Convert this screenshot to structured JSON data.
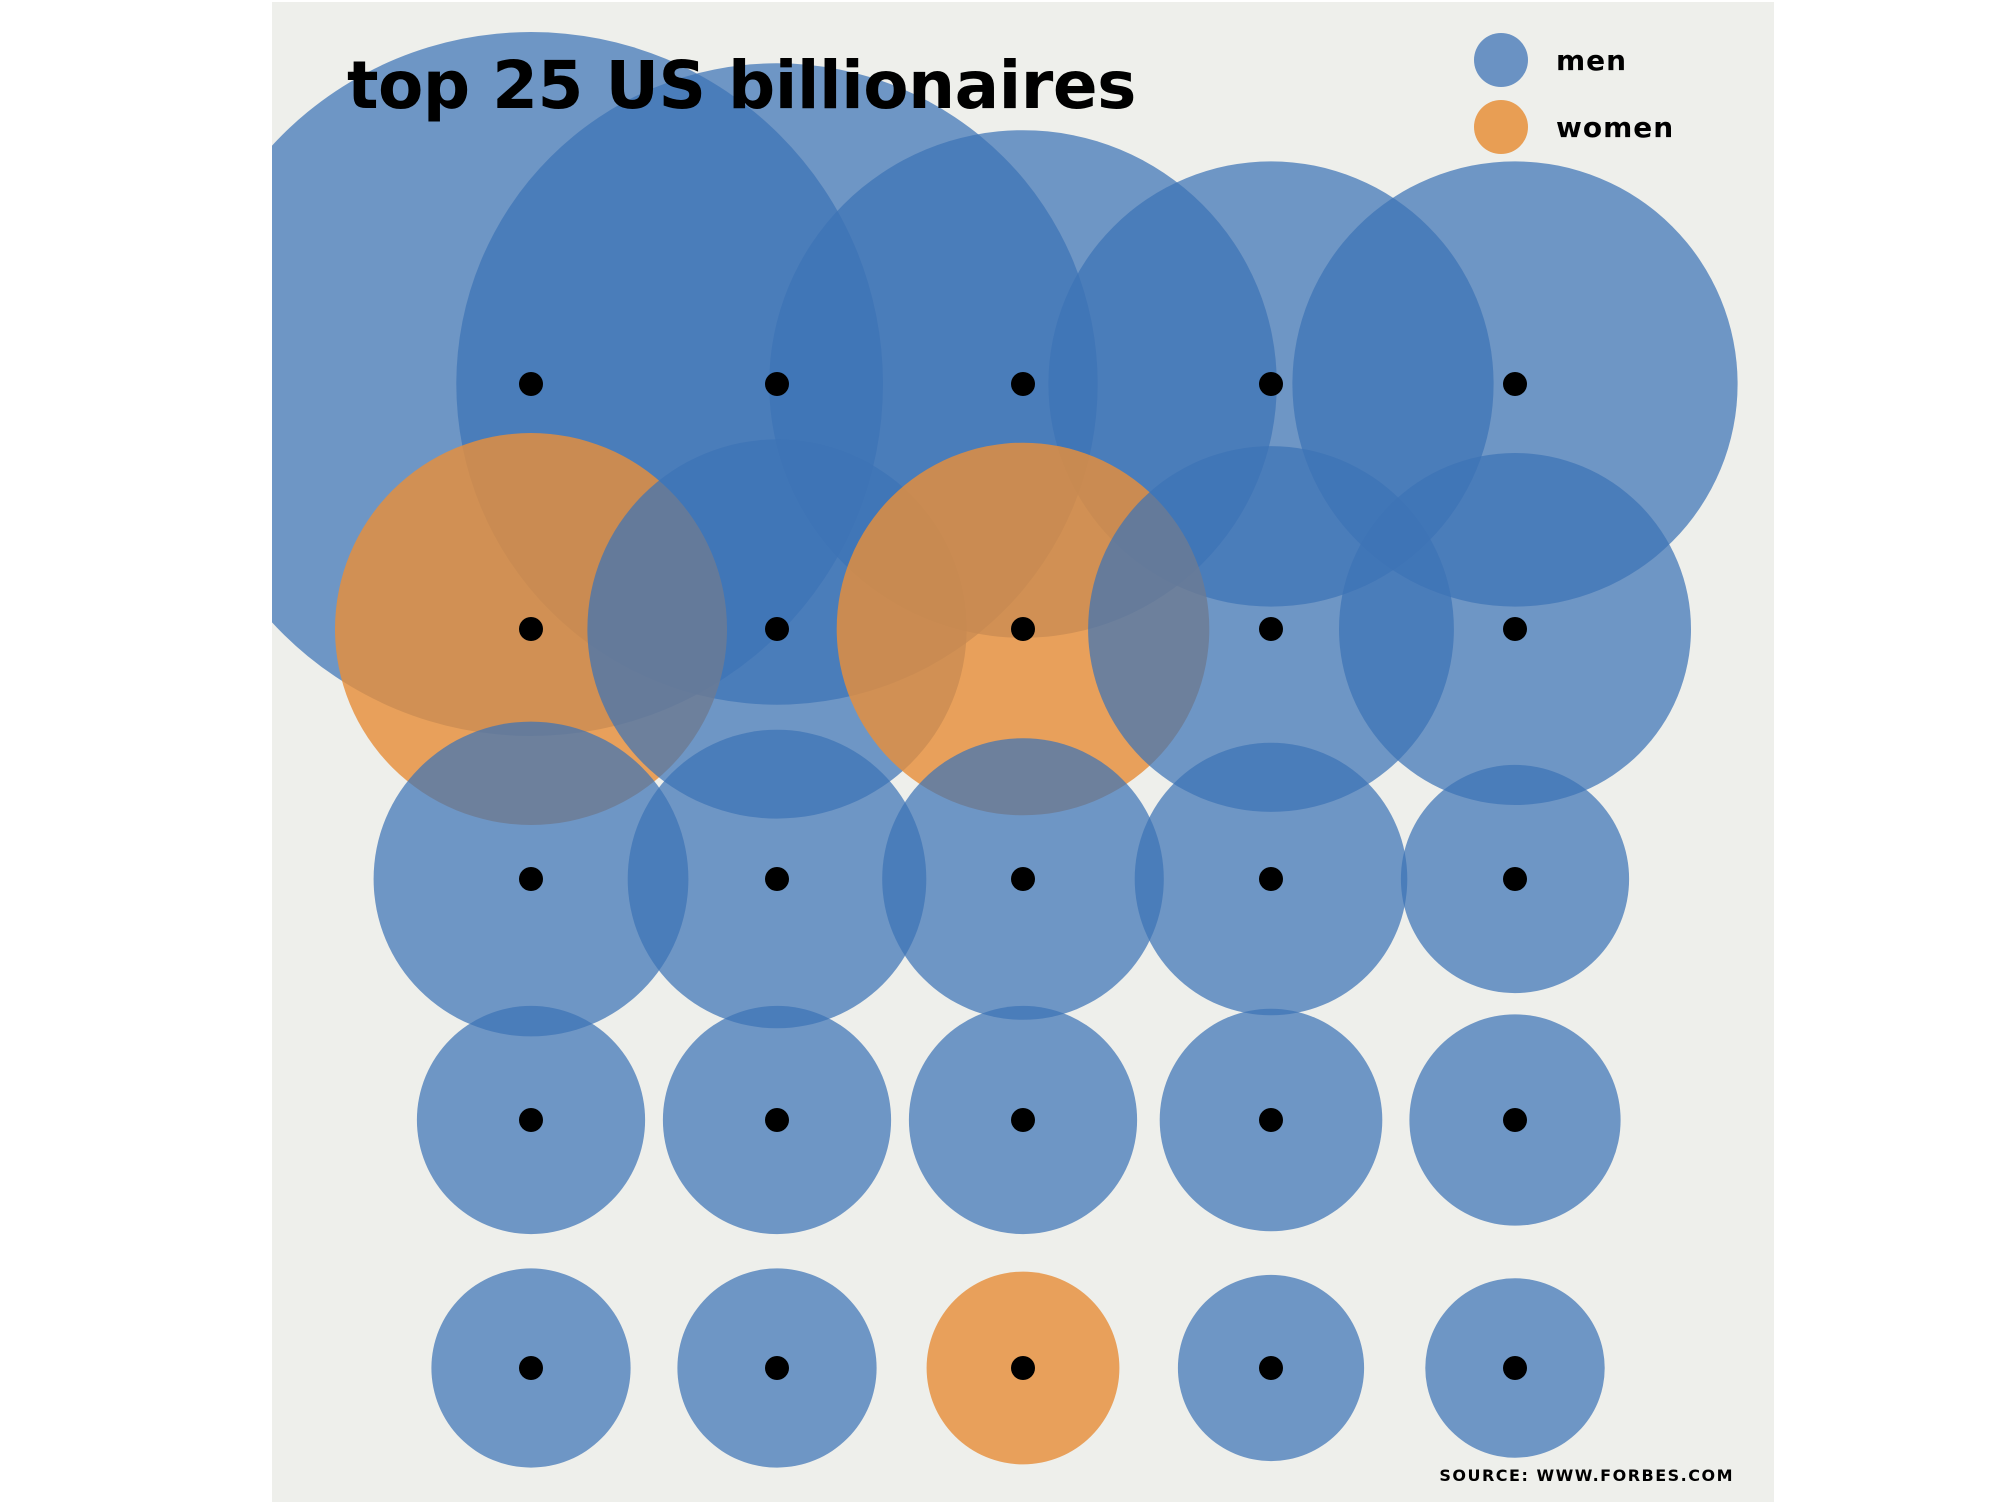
{
  "colors": {
    "men": "#3d73b6",
    "women": "#e68f3a",
    "background": "#eeefeb",
    "dot": "#000000"
  },
  "chart_data": {
    "type": "bubble",
    "title": "top 25 US billionaires",
    "source": "SOURCE: WWW.FORBES.COM",
    "legend": {
      "placement": "top-right",
      "entries": [
        {
          "label": "men",
          "category": "men"
        },
        {
          "label": "women",
          "category": "women"
        }
      ]
    },
    "grid": {
      "rows": 5,
      "cols": 5
    },
    "size_note": "circle area proportional to relative wealth (largest = 100)",
    "points": [
      {
        "rank": 1,
        "gender": "men",
        "value": 100
      },
      {
        "rank": 2,
        "gender": "men",
        "value": 83
      },
      {
        "rank": 3,
        "gender": "men",
        "value": 52
      },
      {
        "rank": 4,
        "gender": "men",
        "value": 40
      },
      {
        "rank": 5,
        "gender": "men",
        "value": 40
      },
      {
        "rank": 6,
        "gender": "women",
        "value": 31
      },
      {
        "rank": 7,
        "gender": "men",
        "value": 29
      },
      {
        "rank": 8,
        "gender": "women",
        "value": 28
      },
      {
        "rank": 9,
        "gender": "men",
        "value": 27
      },
      {
        "rank": 10,
        "gender": "men",
        "value": 25
      },
      {
        "rank": 11,
        "gender": "men",
        "value": 20
      },
      {
        "rank": 12,
        "gender": "men",
        "value": 18
      },
      {
        "rank": 13,
        "gender": "men",
        "value": 16
      },
      {
        "rank": 14,
        "gender": "men",
        "value": 15
      },
      {
        "rank": 15,
        "gender": "men",
        "value": 10.5
      },
      {
        "rank": 16,
        "gender": "men",
        "value": 10.5
      },
      {
        "rank": 17,
        "gender": "men",
        "value": 10.5
      },
      {
        "rank": 18,
        "gender": "men",
        "value": 10.5
      },
      {
        "rank": 19,
        "gender": "men",
        "value": 10
      },
      {
        "rank": 20,
        "gender": "men",
        "value": 9
      },
      {
        "rank": 21,
        "gender": "men",
        "value": 8
      },
      {
        "rank": 22,
        "gender": "men",
        "value": 8
      },
      {
        "rank": 23,
        "gender": "women",
        "value": 7.5
      },
      {
        "rank": 24,
        "gender": "men",
        "value": 7
      },
      {
        "rank": 25,
        "gender": "men",
        "value": 6.5
      }
    ]
  }
}
